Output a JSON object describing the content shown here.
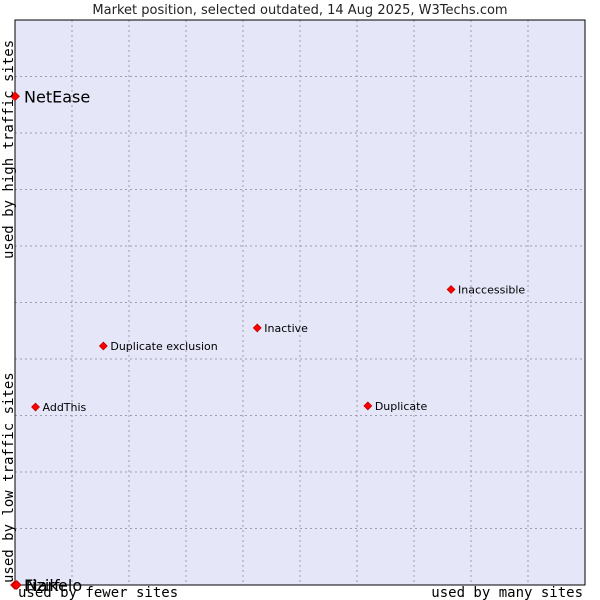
{
  "chart_data": {
    "type": "scatter",
    "title": "Market position, selected outdated, 14 Aug 2025, W3Techs.com",
    "xlabel_left": "used by fewer sites",
    "xlabel_right": "used by many sites",
    "ylabel_bottom": "used by low traffic sites",
    "ylabel_top": "used by high traffic sites",
    "xlim": [
      0,
      100
    ],
    "ylim": [
      0,
      100
    ],
    "grid": true,
    "points": [
      {
        "label": "NetEase",
        "x": 0,
        "y": 86.5,
        "size": "large"
      },
      {
        "label": "Inaccessible",
        "x": 76.5,
        "y": 52.3,
        "size": "small"
      },
      {
        "label": "Inactive",
        "x": 42.5,
        "y": 45.5,
        "size": "small"
      },
      {
        "label": "Duplicate exclusion",
        "x": 15.5,
        "y": 42.3,
        "size": "small"
      },
      {
        "label": "AddThis",
        "x": 3.6,
        "y": 31.5,
        "size": "small"
      },
      {
        "label": "Duplicate",
        "x": 61.9,
        "y": 31.7,
        "size": "small"
      },
      {
        "label": "Fizikelo",
        "x": 0,
        "y": 0,
        "size": "large"
      },
      {
        "label": "Narf",
        "x": 0.3,
        "y": 0,
        "size": "large"
      }
    ]
  },
  "colors": {
    "plot_bg": "#e5e6f8",
    "grid": "#9d9eb3",
    "marker": "#ff0000"
  }
}
